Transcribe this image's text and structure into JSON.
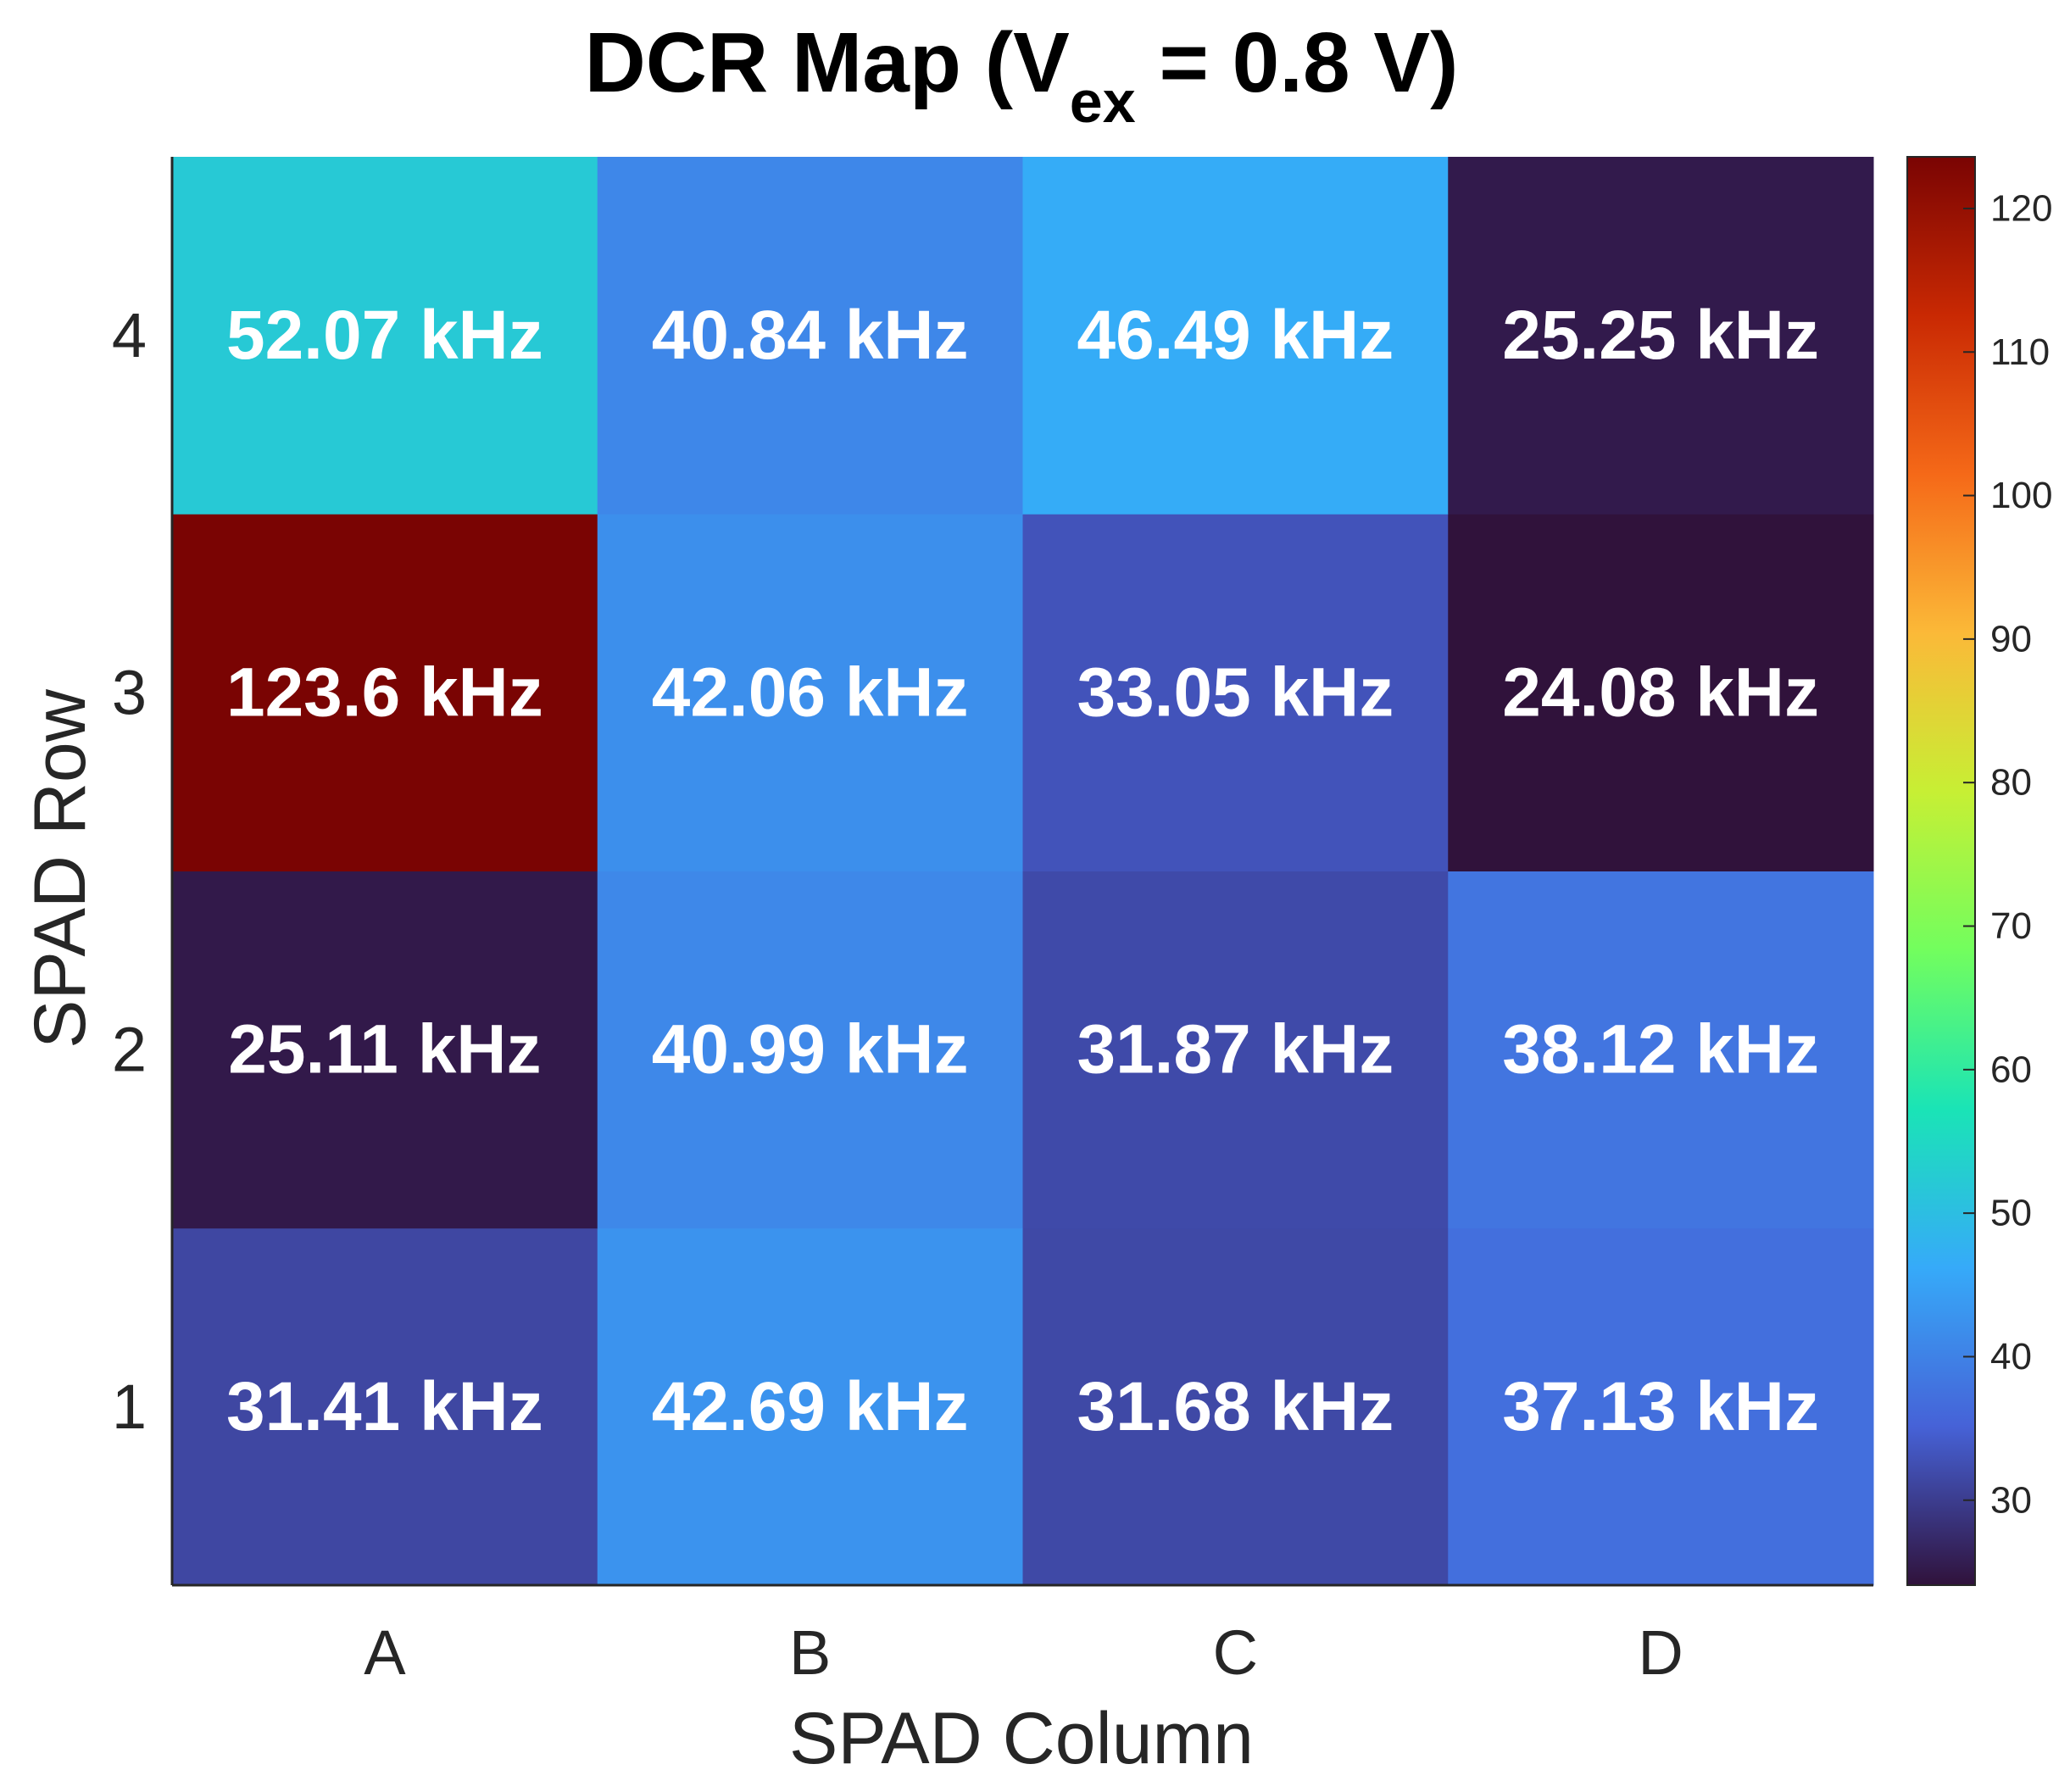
{
  "chart_data": {
    "type": "heatmap",
    "title": {
      "main": "DCR Map (V",
      "subscript": "ex",
      "tail": " = 0.8 V)"
    },
    "xlabel": "SPAD Column",
    "ylabel": "SPAD Row",
    "x_categories": [
      "A",
      "B",
      "C",
      "D"
    ],
    "y_categories": [
      "1",
      "2",
      "3",
      "4"
    ],
    "unit": "kHz",
    "values": [
      [
        31.41,
        42.69,
        31.68,
        37.13
      ],
      [
        25.11,
        40.99,
        31.87,
        38.12
      ],
      [
        123.6,
        42.06,
        33.05,
        24.08
      ],
      [
        52.07,
        40.84,
        46.49,
        25.25
      ]
    ],
    "cell_labels": [
      [
        "31.41 kHz",
        "42.69 kHz",
        "31.68 kHz",
        "37.13 kHz"
      ],
      [
        "25.11 kHz",
        "40.99 kHz",
        "31.87 kHz",
        "38.12 kHz"
      ],
      [
        "123.6 kHz",
        "42.06 kHz",
        "33.05 kHz",
        "24.08 kHz"
      ],
      [
        "52.07 kHz",
        "40.84 kHz",
        "46.49 kHz",
        "25.25 kHz"
      ]
    ],
    "colorbar": {
      "colormap": "turbo",
      "range": [
        24.08,
        123.6
      ],
      "ticks": [
        30,
        40,
        50,
        60,
        70,
        80,
        90,
        100,
        110,
        120
      ],
      "location": "right"
    },
    "colormap_stops": [
      "#30123b",
      "#4662d7",
      "#36aaf9",
      "#1ae4b6",
      "#72fe5e",
      "#c7ef34",
      "#fbb938",
      "#f56918",
      "#c92903",
      "#7a0403"
    ]
  }
}
